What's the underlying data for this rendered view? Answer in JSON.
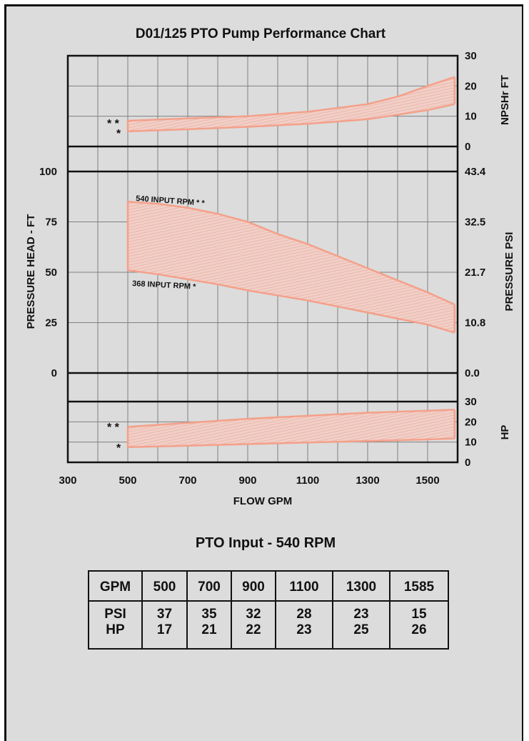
{
  "chart_data": {
    "title": "D01/125 PTO Pump Performance Chart",
    "x_axis": {
      "label": "FLOW GPM",
      "ticks": [
        "300",
        "500",
        "700",
        "900",
        "1100",
        "1300",
        "1500"
      ],
      "range": [
        300,
        1600
      ]
    },
    "npsh": {
      "type": "area",
      "label": "NPSHr FT",
      "ticks": [
        "30",
        "20",
        "10",
        "0"
      ],
      "range": [
        0,
        30
      ],
      "curve_540_marker": "* *",
      "curve_368_marker": "*",
      "curve_540": {
        "x": [
          500,
          700,
          900,
          1100,
          1300,
          1400,
          1500,
          1590
        ],
        "y": [
          8.5,
          9.3,
          10,
          11.5,
          14,
          16.5,
          20,
          23
        ]
      },
      "curve_368": {
        "x": [
          500,
          700,
          900,
          1100,
          1300,
          1400,
          1500,
          1590
        ],
        "y": [
          5,
          5.7,
          6.5,
          7.5,
          9,
          10.5,
          12,
          14
        ]
      }
    },
    "pressure": {
      "type": "area",
      "left_label": "PRESSURE HEAD - FT",
      "right_label": "PRESSURE PSI",
      "left_ticks": [
        "100",
        "75",
        "50",
        "25",
        "0"
      ],
      "right_ticks": [
        "43.4",
        "32.5",
        "21.7",
        "10.8",
        "0.0"
      ],
      "range": [
        0,
        100
      ],
      "curve_540_label": "540 INPUT RPM * *",
      "curve_368_label": "368 INPUT RPM *",
      "curve_540": {
        "x": [
          500,
          600,
          700,
          800,
          900,
          1000,
          1100,
          1200,
          1300,
          1400,
          1500,
          1590
        ],
        "y": [
          85,
          84,
          82,
          79,
          75,
          69,
          64,
          58,
          52,
          46,
          40,
          34
        ]
      },
      "curve_368": {
        "x": [
          500,
          600,
          700,
          800,
          900,
          1000,
          1100,
          1200,
          1300,
          1400,
          1500,
          1590
        ],
        "y": [
          51,
          49,
          46.5,
          44,
          41,
          38.5,
          36,
          33,
          30,
          27,
          24,
          20
        ]
      }
    },
    "hp": {
      "type": "area",
      "label": "HP",
      "ticks": [
        "30",
        "20",
        "10",
        "0"
      ],
      "range": [
        0,
        30
      ],
      "curve_540_marker": "* *",
      "curve_368_marker": "*",
      "curve_540": {
        "x": [
          500,
          700,
          900,
          1100,
          1300,
          1500,
          1590
        ],
        "y": [
          17.5,
          19.5,
          21.5,
          23,
          24.5,
          25.5,
          26
        ]
      },
      "curve_368": {
        "x": [
          500,
          700,
          900,
          1100,
          1300,
          1500,
          1590
        ],
        "y": [
          7.5,
          8.2,
          9,
          9.8,
          10.5,
          11.3,
          11.8
        ]
      }
    },
    "colors": {
      "curve": "#f4a08a",
      "fill": "#f1cfc7",
      "grid": "#808080",
      "frame": "#111111"
    }
  },
  "table": {
    "title": "PTO Input - 540 RPM",
    "header": [
      "GPM",
      "500",
      "700",
      "900",
      "1100",
      "1300",
      "1585"
    ],
    "rows": [
      [
        "PSI",
        "37",
        "35",
        "32",
        "28",
        "23",
        "15"
      ],
      [
        "HP",
        "17",
        "21",
        "22",
        "23",
        "25",
        "26"
      ]
    ]
  }
}
